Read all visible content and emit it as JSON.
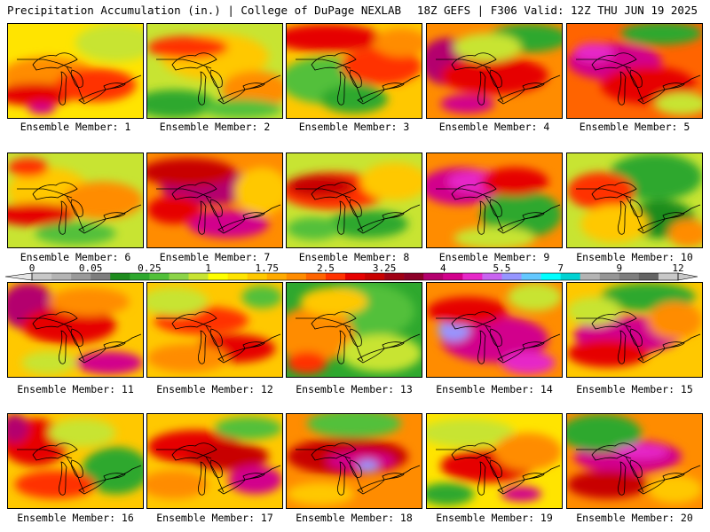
{
  "header": {
    "left": "Precipitation Accumulation (in.) | College of DuPage NEXLAB",
    "right": "18Z GEFS | F306 Valid: 12Z THU JUN 19 2025"
  },
  "colorbar": {
    "labels": [
      "0",
      "0.05",
      "0.25",
      "1",
      "1.75",
      "2.5",
      "3.25",
      "4",
      "5.5",
      "7",
      "9",
      "12"
    ],
    "colors": [
      "#c8c8c8",
      "#b4b4b4",
      "#9a9a9a",
      "#7e7e7e",
      "#1e8c1e",
      "#2ea82e",
      "#52c03a",
      "#8cd448",
      "#c8e432",
      "#ffff00",
      "#ffe400",
      "#ffc800",
      "#ffaa00",
      "#ff8c00",
      "#ff6400",
      "#ff3200",
      "#e60000",
      "#c80000",
      "#a00014",
      "#8c0028",
      "#b4006e",
      "#d2008c",
      "#e628c8",
      "#c864f0",
      "#9696ff",
      "#64c8ff",
      "#00ffff",
      "#00d2d2",
      "#b4b4b4",
      "#969696",
      "#7e7e7e",
      "#646464",
      "#c8c8c8"
    ]
  },
  "panels": [
    {
      "label": "Ensemble Member: 1",
      "bg": "#ffe400",
      "blobs": [
        [
          "#ff8c00",
          0.3,
          0.55,
          0.35,
          0.2
        ],
        [
          "#e60000",
          0.2,
          0.75,
          0.3,
          0.12
        ],
        [
          "#c8e432",
          0.8,
          0.2,
          0.3,
          0.2
        ],
        [
          "#ff3200",
          0.65,
          0.65,
          0.3,
          0.18
        ],
        [
          "#d2008c",
          0.25,
          0.9,
          0.1,
          0.06
        ]
      ]
    },
    {
      "label": "Ensemble Member: 2",
      "bg": "#c8e432",
      "blobs": [
        [
          "#ffc800",
          0.5,
          0.35,
          0.4,
          0.25
        ],
        [
          "#ff3200",
          0.3,
          0.25,
          0.3,
          0.12
        ],
        [
          "#2ea82e",
          0.2,
          0.85,
          0.3,
          0.15
        ],
        [
          "#ff8c00",
          0.8,
          0.7,
          0.25,
          0.2
        ],
        [
          "#52c03a",
          0.7,
          0.9,
          0.3,
          0.1
        ]
      ]
    },
    {
      "label": "Ensemble Member: 3",
      "bg": "#ffc800",
      "blobs": [
        [
          "#e60000",
          0.3,
          0.15,
          0.4,
          0.15
        ],
        [
          "#52c03a",
          0.3,
          0.6,
          0.35,
          0.25
        ],
        [
          "#ff3200",
          0.7,
          0.45,
          0.3,
          0.2
        ],
        [
          "#2ea82e",
          0.5,
          0.8,
          0.25,
          0.15
        ],
        [
          "#ff8c00",
          0.85,
          0.2,
          0.2,
          0.15
        ]
      ]
    },
    {
      "label": "Ensemble Member: 4",
      "bg": "#ff8c00",
      "blobs": [
        [
          "#b4006e",
          0.15,
          0.4,
          0.2,
          0.25
        ],
        [
          "#e60000",
          0.5,
          0.55,
          0.4,
          0.2
        ],
        [
          "#2ea82e",
          0.75,
          0.15,
          0.3,
          0.15
        ],
        [
          "#c8e432",
          0.45,
          0.25,
          0.25,
          0.15
        ],
        [
          "#d2008c",
          0.3,
          0.85,
          0.2,
          0.1
        ]
      ]
    },
    {
      "label": "Ensemble Member: 5",
      "bg": "#ff6400",
      "blobs": [
        [
          "#d2008c",
          0.35,
          0.4,
          0.35,
          0.2
        ],
        [
          "#2ea82e",
          0.7,
          0.1,
          0.3,
          0.12
        ],
        [
          "#e60000",
          0.6,
          0.65,
          0.35,
          0.2
        ],
        [
          "#c8e432",
          0.85,
          0.85,
          0.2,
          0.12
        ],
        [
          "#e628c8",
          0.2,
          0.3,
          0.15,
          0.1
        ]
      ]
    },
    {
      "label": "Ensemble Member: 6",
      "bg": "#c8e432",
      "blobs": [
        [
          "#ffc800",
          0.3,
          0.4,
          0.3,
          0.25
        ],
        [
          "#e60000",
          0.2,
          0.65,
          0.3,
          0.12
        ],
        [
          "#ff8c00",
          0.7,
          0.5,
          0.3,
          0.2
        ],
        [
          "#52c03a",
          0.5,
          0.85,
          0.3,
          0.12
        ],
        [
          "#ff3200",
          0.15,
          0.15,
          0.15,
          0.1
        ]
      ]
    },
    {
      "label": "Ensemble Member: 7",
      "bg": "#ff8c00",
      "blobs": [
        [
          "#b4006e",
          0.45,
          0.35,
          0.35,
          0.2
        ],
        [
          "#c80000",
          0.3,
          0.2,
          0.35,
          0.15
        ],
        [
          "#d2008c",
          0.6,
          0.75,
          0.3,
          0.15
        ],
        [
          "#ffc800",
          0.85,
          0.4,
          0.2,
          0.25
        ],
        [
          "#e60000",
          0.2,
          0.6,
          0.2,
          0.15
        ]
      ]
    },
    {
      "label": "Ensemble Member: 8",
      "bg": "#c8e432",
      "blobs": [
        [
          "#ff3200",
          0.35,
          0.4,
          0.4,
          0.2
        ],
        [
          "#c80000",
          0.25,
          0.35,
          0.25,
          0.12
        ],
        [
          "#2ea82e",
          0.6,
          0.75,
          0.3,
          0.15
        ],
        [
          "#ffc800",
          0.8,
          0.3,
          0.25,
          0.2
        ],
        [
          "#52c03a",
          0.2,
          0.8,
          0.2,
          0.12
        ]
      ]
    },
    {
      "label": "Ensemble Member: 9",
      "bg": "#ff8c00",
      "blobs": [
        [
          "#d2008c",
          0.25,
          0.35,
          0.3,
          0.2
        ],
        [
          "#e628c8",
          0.4,
          0.3,
          0.25,
          0.12
        ],
        [
          "#2ea82e",
          0.7,
          0.65,
          0.3,
          0.25
        ],
        [
          "#c8e432",
          0.5,
          0.9,
          0.3,
          0.12
        ],
        [
          "#e60000",
          0.65,
          0.3,
          0.25,
          0.15
        ]
      ]
    },
    {
      "label": "Ensemble Member: 10",
      "bg": "#c8e432",
      "blobs": [
        [
          "#2ea82e",
          0.65,
          0.25,
          0.35,
          0.25
        ],
        [
          "#ff3200",
          0.25,
          0.4,
          0.25,
          0.2
        ],
        [
          "#1e8c1e",
          0.7,
          0.7,
          0.25,
          0.2
        ],
        [
          "#ffc800",
          0.35,
          0.75,
          0.25,
          0.2
        ],
        [
          "#ff8c00",
          0.9,
          0.85,
          0.15,
          0.15
        ]
      ]
    },
    {
      "label": "Ensemble Member: 11",
      "bg": "#ffc800",
      "blobs": [
        [
          "#b4006e",
          0.15,
          0.25,
          0.2,
          0.25
        ],
        [
          "#e60000",
          0.45,
          0.45,
          0.35,
          0.2
        ],
        [
          "#d2008c",
          0.75,
          0.85,
          0.25,
          0.12
        ],
        [
          "#ff8c00",
          0.6,
          0.2,
          0.3,
          0.15
        ],
        [
          "#c8e432",
          0.3,
          0.85,
          0.2,
          0.12
        ]
      ]
    },
    {
      "label": "Ensemble Member: 12",
      "bg": "#ffc800",
      "blobs": [
        [
          "#ff3200",
          0.4,
          0.4,
          0.35,
          0.15
        ],
        [
          "#c8e432",
          0.2,
          0.2,
          0.25,
          0.15
        ],
        [
          "#e60000",
          0.65,
          0.7,
          0.3,
          0.15
        ],
        [
          "#52c03a",
          0.85,
          0.15,
          0.15,
          0.12
        ],
        [
          "#ff8c00",
          0.3,
          0.8,
          0.3,
          0.15
        ]
      ]
    },
    {
      "label": "Ensemble Member: 13",
      "bg": "#2ea82e",
      "blobs": [
        [
          "#52c03a",
          0.55,
          0.3,
          0.4,
          0.3
        ],
        [
          "#ff8c00",
          0.2,
          0.55,
          0.3,
          0.3
        ],
        [
          "#ffc800",
          0.35,
          0.2,
          0.25,
          0.15
        ],
        [
          "#c8e432",
          0.7,
          0.75,
          0.3,
          0.2
        ],
        [
          "#ff3200",
          0.15,
          0.85,
          0.15,
          0.12
        ]
      ]
    },
    {
      "label": "Ensemble Member: 14",
      "bg": "#ff8c00",
      "blobs": [
        [
          "#d2008c",
          0.5,
          0.6,
          0.4,
          0.25
        ],
        [
          "#9696ff",
          0.2,
          0.5,
          0.12,
          0.12
        ],
        [
          "#e60000",
          0.3,
          0.3,
          0.3,
          0.15
        ],
        [
          "#c8e432",
          0.8,
          0.15,
          0.2,
          0.15
        ],
        [
          "#e628c8",
          0.75,
          0.85,
          0.2,
          0.12
        ]
      ]
    },
    {
      "label": "Ensemble Member: 15",
      "bg": "#ffc800",
      "blobs": [
        [
          "#2ea82e",
          0.6,
          0.15,
          0.35,
          0.15
        ],
        [
          "#d2008c",
          0.45,
          0.55,
          0.4,
          0.2
        ],
        [
          "#e60000",
          0.3,
          0.75,
          0.3,
          0.15
        ],
        [
          "#c8e432",
          0.2,
          0.3,
          0.2,
          0.15
        ],
        [
          "#ff8c00",
          0.8,
          0.4,
          0.2,
          0.2
        ]
      ]
    },
    {
      "label": "Ensemble Member: 16",
      "bg": "#ffc800",
      "blobs": [
        [
          "#e60000",
          0.2,
          0.3,
          0.25,
          0.25
        ],
        [
          "#b4006e",
          0.05,
          0.15,
          0.1,
          0.15
        ],
        [
          "#2ea82e",
          0.8,
          0.6,
          0.25,
          0.25
        ],
        [
          "#ff3200",
          0.35,
          0.75,
          0.3,
          0.15
        ],
        [
          "#c8e432",
          0.55,
          0.2,
          0.25,
          0.15
        ]
      ]
    },
    {
      "label": "Ensemble Member: 17",
      "bg": "#ffc800",
      "blobs": [
        [
          "#e60000",
          0.35,
          0.35,
          0.35,
          0.18
        ],
        [
          "#c80000",
          0.6,
          0.45,
          0.3,
          0.15
        ],
        [
          "#52c03a",
          0.75,
          0.15,
          0.25,
          0.12
        ],
        [
          "#d2008c",
          0.8,
          0.7,
          0.2,
          0.15
        ],
        [
          "#ff8c00",
          0.2,
          0.75,
          0.25,
          0.15
        ]
      ]
    },
    {
      "label": "Ensemble Member: 18",
      "bg": "#ff8c00",
      "blobs": [
        [
          "#c80000",
          0.45,
          0.45,
          0.45,
          0.2
        ],
        [
          "#d2008c",
          0.55,
          0.5,
          0.25,
          0.1
        ],
        [
          "#52c03a",
          0.5,
          0.1,
          0.35,
          0.15
        ],
        [
          "#9696ff",
          0.6,
          0.55,
          0.08,
          0.06
        ],
        [
          "#ffc800",
          0.25,
          0.85,
          0.25,
          0.12
        ]
      ]
    },
    {
      "label": "Ensemble Member: 19",
      "bg": "#ffe400",
      "blobs": [
        [
          "#c8e432",
          0.3,
          0.2,
          0.35,
          0.15
        ],
        [
          "#e60000",
          0.45,
          0.55,
          0.35,
          0.18
        ],
        [
          "#ff8c00",
          0.75,
          0.4,
          0.25,
          0.2
        ],
        [
          "#2ea82e",
          0.15,
          0.85,
          0.2,
          0.12
        ],
        [
          "#d2008c",
          0.7,
          0.85,
          0.15,
          0.08
        ]
      ]
    },
    {
      "label": "Ensemble Member: 20",
      "bg": "#ff8c00",
      "blobs": [
        [
          "#d2008c",
          0.45,
          0.45,
          0.4,
          0.18
        ],
        [
          "#2ea82e",
          0.25,
          0.2,
          0.3,
          0.2
        ],
        [
          "#e628c8",
          0.55,
          0.4,
          0.2,
          0.08
        ],
        [
          "#ffc800",
          0.8,
          0.8,
          0.2,
          0.15
        ],
        [
          "#c80000",
          0.3,
          0.75,
          0.3,
          0.15
        ]
      ]
    }
  ]
}
